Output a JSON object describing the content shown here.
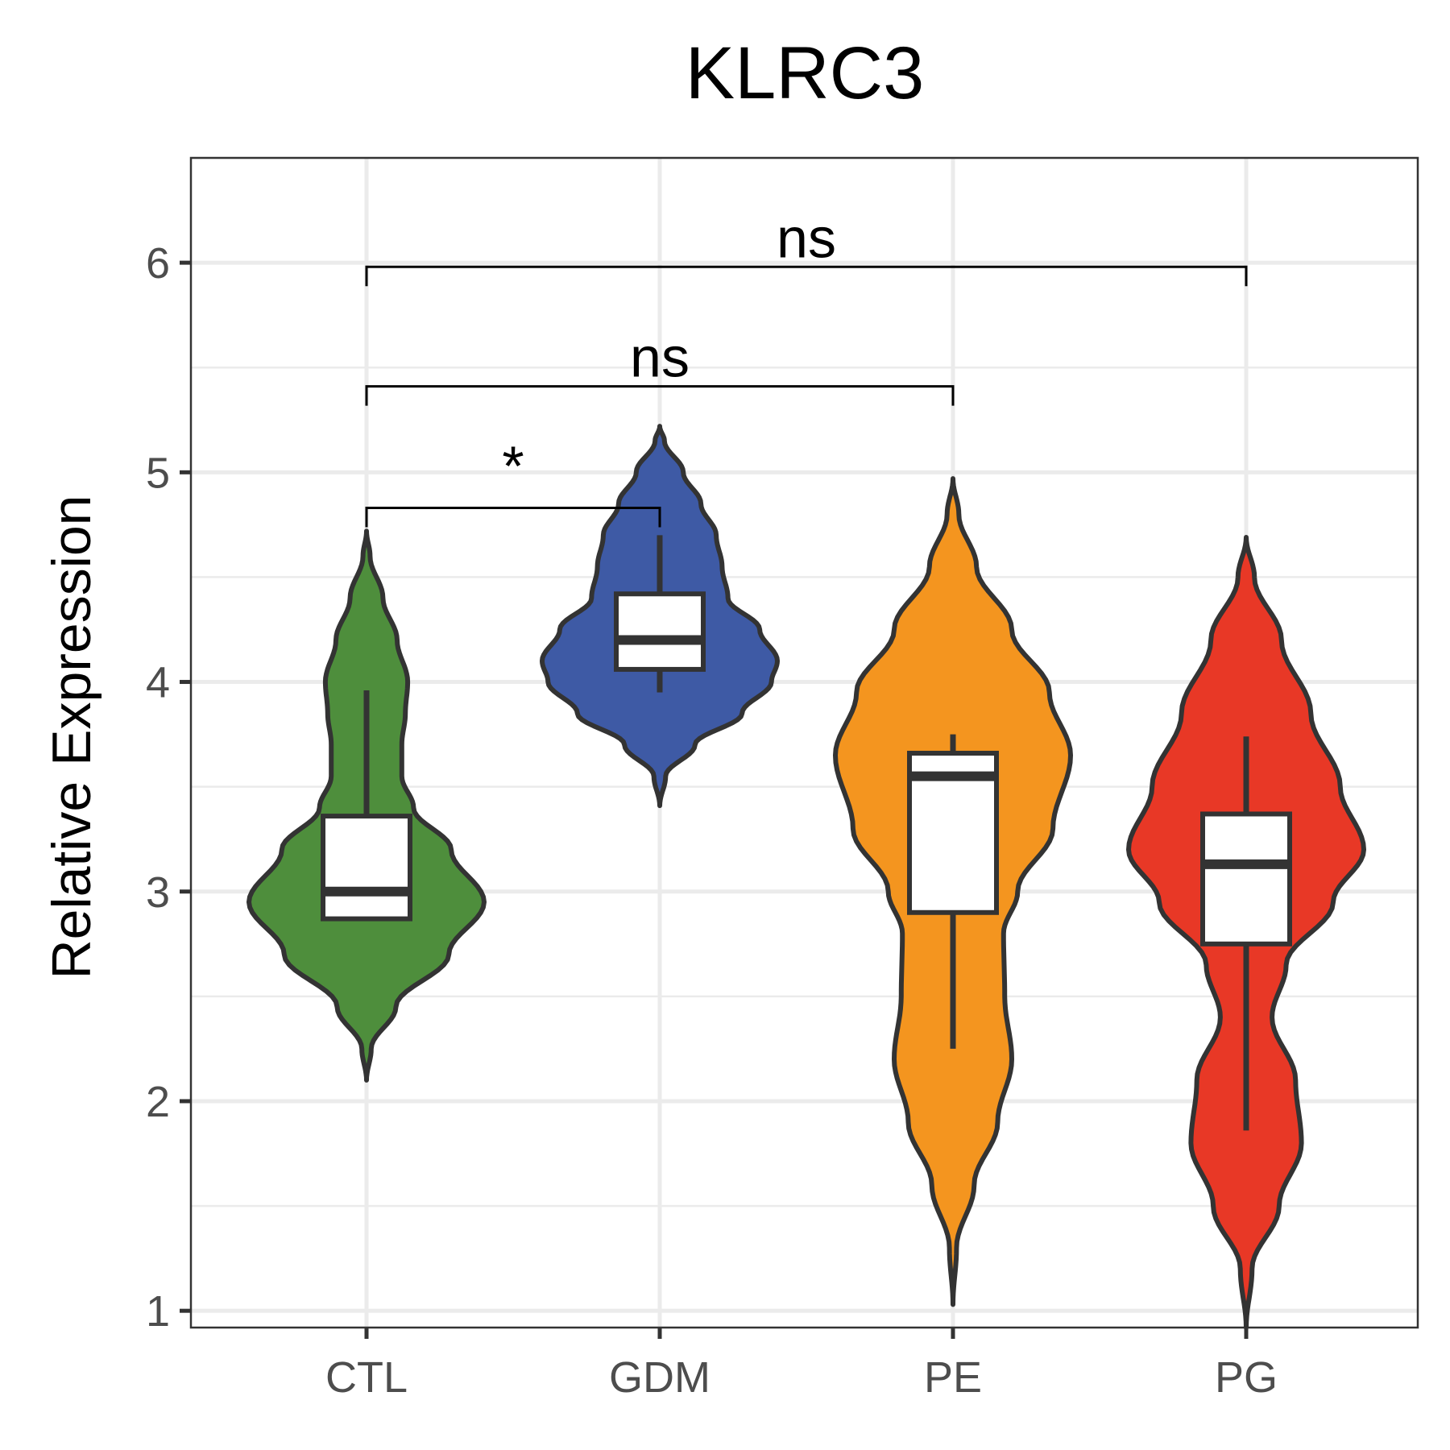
{
  "chart_data": {
    "type": "violin",
    "title": "KLRC3",
    "xlabel": "",
    "ylabel": "Relative Expression",
    "ylim": [
      0.92,
      6.5
    ],
    "yticks": [
      1,
      2,
      3,
      4,
      5,
      6
    ],
    "grid": true,
    "legend": "none",
    "categories": [
      "CTL",
      "GDM",
      "PE",
      "PG"
    ],
    "groups": [
      {
        "name": "CTL",
        "color": "#4e8e3c",
        "violin": {
          "min": 2.1,
          "max": 4.72,
          "profile": [
            [
              2.1,
              0.0
            ],
            [
              2.25,
              0.04
            ],
            [
              2.45,
              0.25
            ],
            [
              2.7,
              0.7
            ],
            [
              2.95,
              1.0
            ],
            [
              3.2,
              0.72
            ],
            [
              3.4,
              0.4
            ],
            [
              3.55,
              0.3
            ],
            [
              3.7,
              0.3
            ],
            [
              3.85,
              0.33
            ],
            [
              4.0,
              0.35
            ],
            [
              4.2,
              0.26
            ],
            [
              4.4,
              0.14
            ],
            [
              4.6,
              0.03
            ],
            [
              4.72,
              0.0
            ]
          ]
        },
        "box": {
          "q1": 2.87,
          "median": 3.0,
          "q3": 3.36,
          "whisker_low": 2.87,
          "whisker_high": 3.96
        }
      },
      {
        "name": "GDM",
        "color": "#3e5aa5",
        "violin": {
          "min": 3.41,
          "max": 5.22,
          "profile": [
            [
              3.41,
              0.0
            ],
            [
              3.55,
              0.05
            ],
            [
              3.7,
              0.3
            ],
            [
              3.85,
              0.7
            ],
            [
              4.0,
              0.95
            ],
            [
              4.1,
              1.0
            ],
            [
              4.25,
              0.85
            ],
            [
              4.4,
              0.58
            ],
            [
              4.55,
              0.53
            ],
            [
              4.7,
              0.48
            ],
            [
              4.85,
              0.35
            ],
            [
              5.0,
              0.2
            ],
            [
              5.15,
              0.04
            ],
            [
              5.22,
              0.0
            ]
          ]
        },
        "box": {
          "q1": 4.06,
          "median": 4.2,
          "q3": 4.42,
          "whisker_low": 3.95,
          "whisker_high": 4.7
        }
      },
      {
        "name": "PE",
        "color": "#f4951f",
        "violin": {
          "min": 1.03,
          "max": 4.97,
          "profile": [
            [
              1.03,
              0.0
            ],
            [
              1.3,
              0.03
            ],
            [
              1.6,
              0.18
            ],
            [
              1.9,
              0.38
            ],
            [
              2.2,
              0.5
            ],
            [
              2.5,
              0.44
            ],
            [
              2.8,
              0.43
            ],
            [
              3.0,
              0.55
            ],
            [
              3.3,
              0.85
            ],
            [
              3.65,
              1.0
            ],
            [
              3.95,
              0.82
            ],
            [
              4.25,
              0.5
            ],
            [
              4.55,
              0.2
            ],
            [
              4.8,
              0.05
            ],
            [
              4.97,
              0.0
            ]
          ]
        },
        "box": {
          "q1": 2.9,
          "median": 3.55,
          "q3": 3.66,
          "whisker_low": 2.25,
          "whisker_high": 3.75
        }
      },
      {
        "name": "PG",
        "color": "#e83826",
        "violin": {
          "min": 0.92,
          "max": 4.69,
          "profile": [
            [
              0.92,
              0.0
            ],
            [
              1.2,
              0.05
            ],
            [
              1.5,
              0.28
            ],
            [
              1.8,
              0.47
            ],
            [
              2.1,
              0.42
            ],
            [
              2.4,
              0.22
            ],
            [
              2.65,
              0.34
            ],
            [
              2.95,
              0.74
            ],
            [
              3.2,
              1.0
            ],
            [
              3.5,
              0.8
            ],
            [
              3.85,
              0.55
            ],
            [
              4.2,
              0.3
            ],
            [
              4.5,
              0.07
            ],
            [
              4.69,
              0.0
            ]
          ]
        },
        "box": {
          "q1": 2.75,
          "median": 3.13,
          "q3": 3.37,
          "whisker_low": 1.86,
          "whisker_high": 3.74
        }
      }
    ],
    "comparisons": [
      {
        "from": "CTL",
        "to": "GDM",
        "label": "*",
        "y": 4.83
      },
      {
        "from": "CTL",
        "to": "PE",
        "label": "ns",
        "y": 5.41
      },
      {
        "from": "CTL",
        "to": "PG",
        "label": "ns",
        "y": 5.98
      }
    ]
  }
}
